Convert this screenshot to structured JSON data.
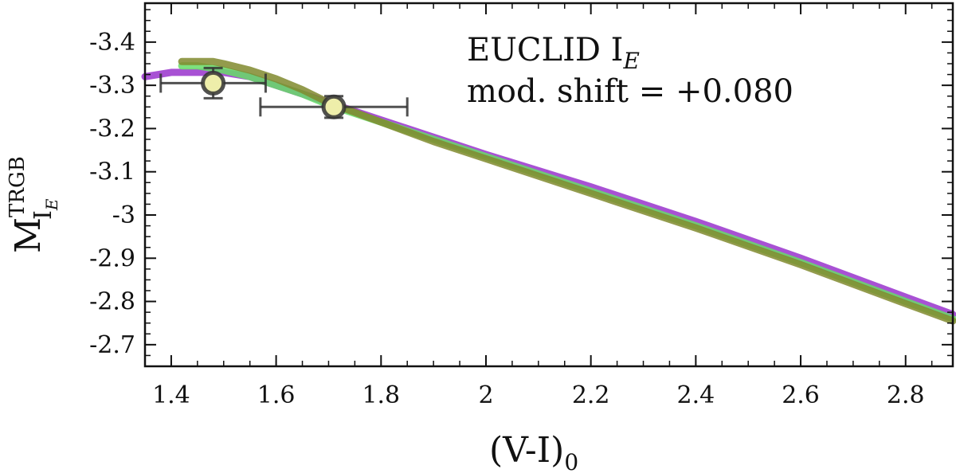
{
  "chart_data": {
    "type": "line",
    "title": "",
    "xlabel": "(V-I)",
    "xlabel_subscript": "0",
    "ylabel": "M",
    "ylabel_superscript": "TRGB",
    "ylabel_subscript": "I",
    "ylabel_subscript_sub": "E",
    "xlim": [
      1.35,
      2.89
    ],
    "ylim": [
      -2.65,
      -3.49
    ],
    "y_inverted": true,
    "x_ticks": [
      1.4,
      1.6,
      1.8,
      2.0,
      2.2,
      2.4,
      2.6,
      2.8
    ],
    "x_tick_labels": [
      "1.4",
      "1.6",
      "1.8",
      "2",
      "2.2",
      "2.4",
      "2.6",
      "2.8"
    ],
    "y_ticks": [
      -2.7,
      -2.8,
      -2.9,
      -3.0,
      -3.1,
      -3.2,
      -3.3,
      -3.4
    ],
    "y_tick_labels": [
      "-2.7",
      "-2.8",
      "-2.9",
      "-3",
      "-3.1",
      "-3.2",
      "-3.3",
      "-3.4"
    ],
    "grid": false,
    "annotations": {
      "line1_text": "EUCLID I",
      "line1_subscript": "E",
      "line2_text": "mod. shift = +0.080"
    },
    "series": [
      {
        "color": "#9933cc",
        "x": [
          1.35,
          1.4,
          1.45,
          1.5,
          1.55,
          1.6,
          1.65,
          1.7,
          1.8,
          1.9,
          2.0,
          2.2,
          2.4,
          2.6,
          2.8,
          2.89
        ],
        "y": [
          -3.32,
          -3.33,
          -3.33,
          -3.33,
          -3.32,
          -3.3,
          -3.28,
          -3.26,
          -3.22,
          -3.18,
          -3.14,
          -3.065,
          -2.985,
          -2.9,
          -2.81,
          -2.77
        ]
      },
      {
        "color": "#66dd66",
        "x": [
          1.42,
          1.45,
          1.5,
          1.55,
          1.6,
          1.65,
          1.7,
          1.8,
          1.9,
          2.0,
          2.2,
          2.4,
          2.6,
          2.8,
          2.89
        ],
        "y": [
          -3.345,
          -3.345,
          -3.335,
          -3.32,
          -3.3,
          -3.28,
          -3.255,
          -3.215,
          -3.175,
          -3.135,
          -3.055,
          -2.975,
          -2.89,
          -2.8,
          -2.76
        ]
      },
      {
        "color": "#808a2e",
        "x": [
          1.42,
          1.45,
          1.48,
          1.5,
          1.55,
          1.6,
          1.65,
          1.7,
          1.8,
          1.9,
          2.0,
          2.2,
          2.4,
          2.6,
          2.8,
          2.89
        ],
        "y": [
          -3.355,
          -3.355,
          -3.355,
          -3.35,
          -3.335,
          -3.315,
          -3.29,
          -3.26,
          -3.215,
          -3.17,
          -3.13,
          -3.05,
          -2.97,
          -2.885,
          -2.795,
          -2.755
        ]
      }
    ],
    "points": [
      {
        "x": 1.48,
        "y": -3.305,
        "xerr": 0.1,
        "yerr": 0.035,
        "fill": "#eeeeaa",
        "edge": "#333333"
      },
      {
        "x": 1.71,
        "y": -3.25,
        "xerr": 0.14,
        "yerr": 0.025,
        "fill": "#eeeeaa",
        "edge": "#333333"
      }
    ]
  }
}
